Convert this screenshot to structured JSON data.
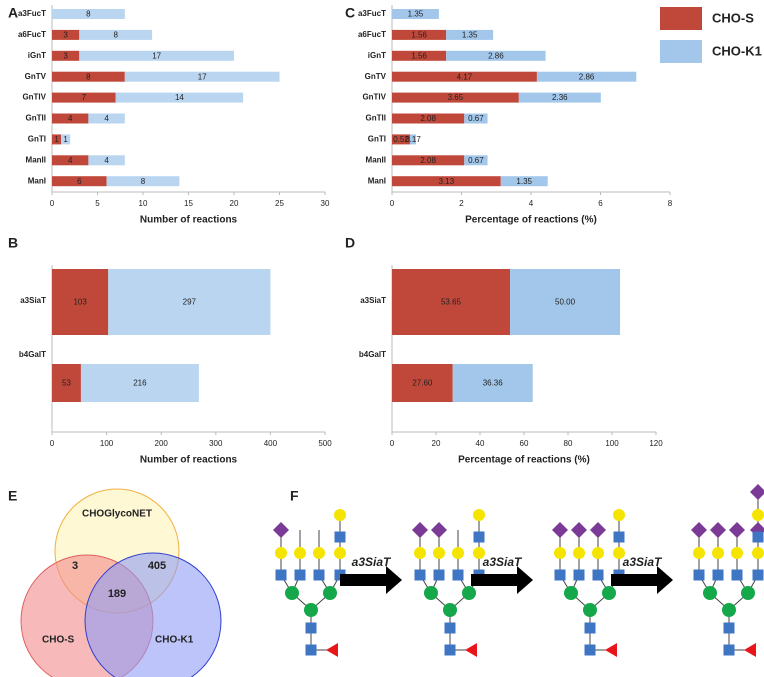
{
  "chart_data": [
    {
      "type": "bar",
      "panel": "A",
      "orientation": "horizontal",
      "stacked": true,
      "xlabel": "Number of reactions",
      "categories": [
        "a3FucT",
        "a6FucT",
        "iGnT",
        "GnTV",
        "GnTIV",
        "GnTII",
        "GnTI",
        "ManII",
        "ManI"
      ],
      "series": [
        {
          "name": "CHO-S",
          "color": "#c0483a",
          "values": [
            null,
            3,
            3,
            8,
            7,
            4,
            1,
            4,
            6
          ]
        },
        {
          "name": "CHO-K1",
          "color": "#b9d5f0",
          "values": [
            8,
            8,
            17,
            17,
            14,
            4,
            1,
            4,
            8
          ]
        }
      ],
      "xlim": [
        0,
        30
      ],
      "xticks": [
        0,
        5,
        10,
        15,
        20,
        25,
        30
      ]
    },
    {
      "type": "bar",
      "panel": "B",
      "orientation": "horizontal",
      "stacked": true,
      "xlabel": "Number of reactions",
      "categories": [
        "a3SiaT",
        "b4GalT"
      ],
      "series": [
        {
          "name": "CHO-S",
          "color": "#c0483a",
          "values": [
            103,
            53
          ]
        },
        {
          "name": "CHO-K1",
          "color": "#b9d5f0",
          "values": [
            297,
            216
          ]
        }
      ],
      "xlim": [
        0,
        500
      ],
      "xticks": [
        0,
        100,
        200,
        300,
        400,
        500
      ]
    },
    {
      "type": "bar",
      "panel": "C",
      "orientation": "horizontal",
      "stacked": true,
      "xlabel": "Percentage of reactions (%)",
      "categories": [
        "a3FucT",
        "a6FucT",
        "iGnT",
        "GnTV",
        "GnTIV",
        "GnTII",
        "GnTI",
        "ManII",
        "ManI"
      ],
      "series": [
        {
          "name": "CHO-S",
          "color": "#c0483a",
          "values": [
            null,
            1.56,
            1.56,
            4.17,
            3.65,
            2.08,
            0.52,
            2.08,
            3.13
          ]
        },
        {
          "name": "CHO-K1",
          "color": "#a3c7ea",
          "values": [
            1.35,
            1.35,
            2.86,
            2.86,
            2.36,
            0.67,
            0.17,
            0.67,
            1.35
          ]
        }
      ],
      "xlim": [
        0,
        8
      ],
      "xticks": [
        0,
        2,
        4,
        6,
        8
      ],
      "legend": "upper right"
    },
    {
      "type": "bar",
      "panel": "D",
      "orientation": "horizontal",
      "stacked": true,
      "xlabel": "Percentage of reactions (%)",
      "categories": [
        "a3SiaT",
        "b4GalT"
      ],
      "series": [
        {
          "name": "CHO-S",
          "color": "#c0483a",
          "values": [
            53.65,
            27.6
          ],
          "value_labels": [
            "53.65",
            "27.60"
          ]
        },
        {
          "name": "CHO-K1",
          "color": "#a3c7ea",
          "values": [
            50,
            36.36
          ],
          "value_labels": [
            "50.00",
            "36.36"
          ]
        }
      ],
      "xlim": [
        0,
        120
      ],
      "xticks": [
        0,
        20,
        40,
        60,
        80,
        100,
        120
      ]
    },
    {
      "type": "venn",
      "panel": "E",
      "sets": [
        {
          "name": "CHOGlycoNET",
          "color": "#fff3b8"
        },
        {
          "name": "CHO-S",
          "color": "#f28b8b"
        },
        {
          "name": "CHO-K1",
          "color": "#8f9cf5"
        }
      ],
      "overlaps": [
        3,
        405,
        189
      ]
    }
  ],
  "diagram": {
    "panel": "F",
    "steps": [
      "a3SiaT",
      "a3SiaT",
      "a3SiaT"
    ]
  }
}
